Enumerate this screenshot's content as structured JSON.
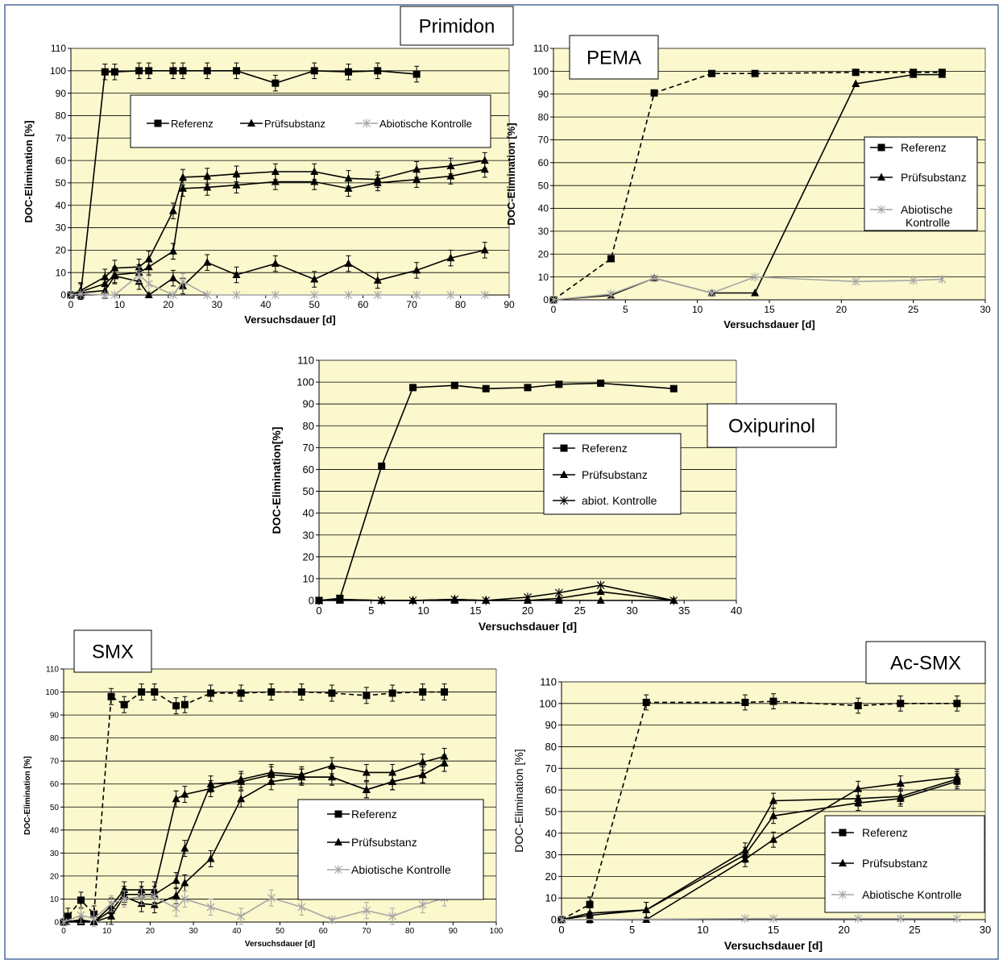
{
  "colors": {
    "plot_bg": "#FAF8CC",
    "grid": "#000000",
    "frame_border": "#4F6A9B",
    "series_black": "#000000",
    "series_gray": "#A6A6A6"
  },
  "chart_data": [
    {
      "id": "primidon",
      "type": "line",
      "title": "Primidon",
      "xlabel": "Versuchsdauer [d]",
      "ylabel": "DOC-Elimination [%]",
      "xlim": [
        0,
        90
      ],
      "ylim": [
        0,
        110
      ],
      "xticks": [
        0,
        10,
        20,
        30,
        40,
        50,
        60,
        70,
        80,
        90
      ],
      "yticks": [
        0,
        10,
        20,
        30,
        40,
        50,
        60,
        70,
        80,
        90,
        100,
        110
      ],
      "grid": "horizontal",
      "legend": {
        "placement": "top",
        "layout": "horizontal"
      },
      "series": [
        {
          "name": "Referenz",
          "marker": "square",
          "dash": "solid",
          "color": "#000000",
          "errorbars": true,
          "x": [
            0,
            2,
            7,
            9,
            14,
            16,
            21,
            23,
            28,
            34,
            42,
            50,
            57,
            63,
            71
          ],
          "y": [
            0,
            0,
            99.5,
            99.5,
            100,
            100,
            100,
            100,
            100,
            100,
            94.5,
            100,
            99.5,
            100,
            98.5
          ]
        },
        {
          "name": "Prüfsubstanz",
          "marker": "triangle",
          "dash": "solid",
          "color": "#000000",
          "errorbars": true,
          "x": [
            0,
            2,
            7,
            9,
            14,
            16,
            21,
            23,
            28,
            34,
            42,
            50,
            57,
            63,
            71,
            78,
            85
          ],
          "y": [
            0,
            2,
            8,
            12,
            12.5,
            16,
            37.5,
            52.5,
            53,
            54,
            55,
            55,
            52,
            51.5,
            56,
            57.5,
            60
          ]
        },
        {
          "name": "",
          "marker": "triangle",
          "dash": "solid",
          "color": "#000000",
          "errorbars": true,
          "x": [
            0,
            2,
            7,
            9,
            14,
            16,
            21,
            23,
            28,
            34,
            42,
            50,
            57,
            63,
            71,
            78,
            85
          ],
          "y": [
            0,
            1.5,
            5,
            9,
            10,
            12.5,
            19.5,
            47.5,
            48,
            49,
            50.5,
            50.5,
            47.5,
            50,
            51.5,
            53,
            56
          ]
        },
        {
          "name": "",
          "marker": "triangle",
          "dash": "solid",
          "color": "#000000",
          "errorbars": true,
          "x": [
            0,
            2,
            7,
            9,
            14,
            16,
            21,
            23,
            28,
            34,
            42,
            50,
            57,
            63,
            71,
            78,
            85
          ],
          "y": [
            0,
            1,
            2,
            8.5,
            6,
            0,
            7.5,
            4,
            14.5,
            9,
            14,
            7,
            14,
            6.5,
            11,
            16.5,
            20
          ]
        },
        {
          "name": "Abiotische Kontrolle",
          "marker": "star",
          "dash": "solid",
          "color": "#A6A6A6",
          "errorbars": true,
          "x": [
            0,
            2,
            7,
            9,
            14,
            16,
            21,
            23,
            28,
            34,
            42,
            50,
            57,
            63,
            71,
            78,
            85
          ],
          "y": [
            0,
            0.5,
            0,
            0,
            9,
            5,
            0,
            6,
            0,
            0,
            0,
            0,
            0,
            0,
            0,
            0,
            0
          ]
        }
      ]
    },
    {
      "id": "pema",
      "type": "line",
      "title": "PEMA",
      "xlabel": "Versuchsdauer [d]",
      "ylabel": "DOC-Elimination  [%]",
      "xlim": [
        0,
        30
      ],
      "ylim": [
        0,
        110
      ],
      "xticks": [
        0,
        5,
        10,
        15,
        20,
        25,
        30
      ],
      "yticks": [
        0,
        10,
        20,
        30,
        40,
        50,
        60,
        70,
        80,
        90,
        100,
        110
      ],
      "grid": "horizontal",
      "legend": {
        "placement": "right",
        "layout": "vertical"
      },
      "series": [
        {
          "name": "Referenz",
          "marker": "square",
          "dash": "dashed",
          "color": "#000000",
          "errorbars": false,
          "x": [
            0,
            4,
            7,
            11,
            14,
            21,
            25,
            27
          ],
          "y": [
            0,
            18,
            90.5,
            99,
            99,
            99.5,
            99.5,
            99.5
          ]
        },
        {
          "name": "Prüfsubstanz",
          "marker": "triangle",
          "dash": "solid",
          "color": "#000000",
          "errorbars": false,
          "x": [
            0,
            4,
            7,
            11,
            14,
            21,
            25,
            27
          ],
          "y": [
            0,
            2,
            9.5,
            3,
            3,
            94.5,
            98.5,
            98.5
          ]
        },
        {
          "name": "Abiotische Kontrolle",
          "marker": "star",
          "dash": "solid",
          "color": "#A6A6A6",
          "errorbars": false,
          "x": [
            0,
            4,
            7,
            11,
            14,
            21,
            25,
            27
          ],
          "y": [
            0,
            2.5,
            9.5,
            3,
            10,
            8,
            8.5,
            9
          ]
        }
      ]
    },
    {
      "id": "oxipurinol",
      "type": "line",
      "title": "Oxipurinol",
      "xlabel": "Versuchsdauer  [d]",
      "ylabel": "DOC-Elimination[%]",
      "xlim": [
        0,
        40
      ],
      "ylim": [
        0,
        110
      ],
      "xticks": [
        0,
        5,
        10,
        15,
        20,
        25,
        30,
        35,
        40
      ],
      "yticks": [
        0,
        10,
        20,
        30,
        40,
        50,
        60,
        70,
        80,
        90,
        100,
        110
      ],
      "grid": "horizontal",
      "legend": {
        "placement": "right",
        "layout": "vertical"
      },
      "series": [
        {
          "name": "Referenz",
          "marker": "square",
          "dash": "solid",
          "color": "#000000",
          "errorbars": false,
          "x": [
            0,
            2,
            6,
            9,
            13,
            16,
            20,
            23,
            27,
            34
          ],
          "y": [
            0,
            1,
            61.5,
            97.5,
            98.5,
            97,
            97.5,
            99,
            99.5,
            97
          ]
        },
        {
          "name": "Prüfsubstanz",
          "marker": "triangle",
          "dash": "solid",
          "color": "#000000",
          "errorbars": false,
          "x": [
            0,
            2,
            6,
            9,
            13,
            16,
            20,
            23,
            27,
            34
          ],
          "y": [
            0,
            0.5,
            0,
            0,
            0,
            0,
            0,
            0,
            0,
            0
          ]
        },
        {
          "name": "",
          "marker": "triangle",
          "dash": "solid",
          "color": "#000000",
          "errorbars": false,
          "x": [
            0,
            2,
            6,
            9,
            13,
            16,
            20,
            23,
            27,
            34
          ],
          "y": [
            0,
            0,
            0,
            0,
            0.5,
            0,
            0,
            1,
            4,
            0
          ]
        },
        {
          "name": "abiot. Kontrolle",
          "marker": "star",
          "dash": "solid",
          "color": "#000000",
          "errorbars": false,
          "x": [
            0,
            2,
            6,
            9,
            13,
            16,
            20,
            23,
            27,
            34
          ],
          "y": [
            0,
            0.5,
            0,
            0,
            0.5,
            0,
            1.5,
            3.5,
            7,
            0
          ]
        }
      ]
    },
    {
      "id": "smx",
      "type": "line",
      "title": "SMX",
      "xlabel": "Versuchsdauer [d]",
      "ylabel": "DOC-Elimination [%]",
      "xlim": [
        0,
        100
      ],
      "ylim": [
        0,
        110
      ],
      "xticks": [
        0,
        10,
        20,
        30,
        40,
        50,
        60,
        70,
        80,
        90,
        100
      ],
      "yticks": [
        0,
        10,
        20,
        30,
        40,
        50,
        60,
        70,
        80,
        90,
        100,
        110
      ],
      "grid": "horizontal",
      "legend": {
        "placement": "right",
        "layout": "vertical"
      },
      "series": [
        {
          "name": "Referenz",
          "marker": "square",
          "dash": "dashed",
          "color": "#000000",
          "errorbars": true,
          "x": [
            0,
            1,
            4,
            7,
            11,
            14,
            18,
            21,
            26,
            28,
            34,
            41,
            48,
            55,
            62,
            70,
            76,
            83,
            88
          ],
          "y": [
            0,
            2.5,
            9.5,
            3.5,
            98,
            94.5,
            100,
            100,
            94,
            94.5,
            99.5,
            99.5,
            100,
            100,
            99.5,
            98.5,
            99.5,
            100,
            100
          ]
        },
        {
          "name": "Prüfsubstanz",
          "marker": "triangle",
          "dash": "solid",
          "color": "#000000",
          "errorbars": true,
          "x": [
            0,
            4,
            7,
            11,
            14,
            18,
            21,
            26,
            28,
            34,
            41,
            48,
            55,
            62,
            70,
            76,
            83,
            88
          ],
          "y": [
            0,
            1,
            0,
            7,
            14,
            14,
            14,
            53.5,
            55.5,
            58,
            62,
            65,
            64,
            68,
            65,
            65,
            69.5,
            72
          ]
        },
        {
          "name": "",
          "marker": "triangle",
          "dash": "solid",
          "color": "#000000",
          "errorbars": true,
          "x": [
            0,
            4,
            7,
            11,
            14,
            18,
            21,
            26,
            28,
            34,
            41,
            48,
            55,
            62,
            70,
            76,
            83,
            88
          ],
          "y": [
            0,
            0.5,
            0,
            5,
            12,
            12,
            12,
            18,
            32,
            60,
            61,
            64,
            63,
            63,
            57.5,
            61,
            64,
            69
          ]
        },
        {
          "name": "",
          "marker": "triangle",
          "dash": "solid",
          "color": "#000000",
          "errorbars": true,
          "x": [
            0,
            4,
            7,
            11,
            14,
            18,
            21,
            26,
            28,
            34,
            41,
            48,
            55,
            62,
            70,
            76,
            83,
            88
          ],
          "y": [
            0,
            0,
            0,
            2.5,
            11,
            8,
            7.5,
            11.5,
            17,
            27.5,
            53.5,
            61,
            63,
            63,
            57.5,
            61,
            64,
            69
          ]
        },
        {
          "name": "Abiotische Kontrolle",
          "marker": "star",
          "dash": "solid",
          "color": "#A6A6A6",
          "errorbars": true,
          "x": [
            0,
            4,
            7,
            11,
            14,
            18,
            21,
            26,
            28,
            34,
            41,
            48,
            55,
            62,
            70,
            76,
            83,
            88
          ],
          "y": [
            0,
            3,
            1.5,
            8,
            10,
            11,
            11,
            6,
            10,
            6.5,
            2.5,
            10.5,
            6.5,
            1,
            5,
            2.5,
            7.5,
            10.5
          ]
        }
      ]
    },
    {
      "id": "acsmx",
      "type": "line",
      "title": "Ac-SMX",
      "xlabel": "Versuchsdauer [d]",
      "ylabel": "DOC-Elimination [%]",
      "xlim": [
        0,
        30
      ],
      "ylim": [
        0,
        110
      ],
      "xticks": [
        0,
        5,
        10,
        15,
        20,
        25,
        30
      ],
      "yticks": [
        0,
        10,
        20,
        30,
        40,
        50,
        60,
        70,
        80,
        90,
        100,
        110
      ],
      "grid": "horizontal",
      "legend": {
        "placement": "right",
        "layout": "vertical"
      },
      "series": [
        {
          "name": "Referenz",
          "marker": "square",
          "dash": "dashed",
          "color": "#000000",
          "errorbars": true,
          "x": [
            0,
            2,
            6,
            13,
            15,
            21,
            24,
            28
          ],
          "y": [
            0,
            7,
            100.5,
            100.5,
            101,
            99,
            100,
            100
          ]
        },
        {
          "name": "Prüfsubstanz",
          "marker": "triangle",
          "dash": "solid",
          "color": "#000000",
          "errorbars": true,
          "x": [
            0,
            2,
            6,
            13,
            15,
            21,
            24,
            28
          ],
          "y": [
            0,
            3,
            4.5,
            32,
            55,
            56,
            57,
            65
          ]
        },
        {
          "name": "",
          "marker": "triangle",
          "dash": "solid",
          "color": "#000000",
          "errorbars": true,
          "x": [
            0,
            2,
            6,
            13,
            15,
            21,
            24,
            28
          ],
          "y": [
            0,
            2,
            4.5,
            30,
            48,
            54,
            56,
            64
          ]
        },
        {
          "name": "",
          "marker": "triangle",
          "dash": "solid",
          "color": "#000000",
          "errorbars": true,
          "x": [
            0,
            2,
            6,
            13,
            15,
            21,
            24,
            28
          ],
          "y": [
            0,
            0,
            0,
            28,
            37,
            60.5,
            63,
            66
          ]
        },
        {
          "name": "Abiotische Kontrolle",
          "marker": "star",
          "dash": "solid",
          "color": "#A6A6A6",
          "errorbars": false,
          "x": [
            0,
            13,
            15,
            21,
            24,
            28
          ],
          "y": [
            0,
            0.5,
            0.5,
            0.5,
            0.5,
            0.5
          ]
        }
      ]
    }
  ]
}
